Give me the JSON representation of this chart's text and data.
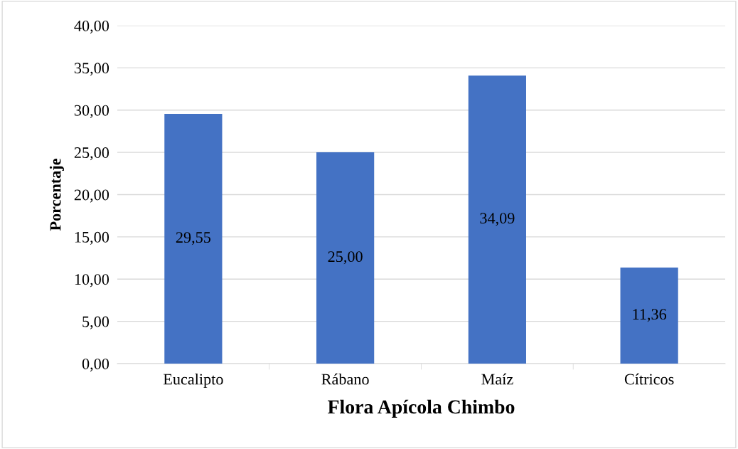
{
  "chart_data": {
    "type": "bar",
    "xlabel": "Flora Apícola Chimbo",
    "ylabel": "Porcentaje",
    "categories": [
      "Eucalipto",
      "Rábano",
      "Maíz",
      "Cítricos"
    ],
    "values": [
      29.55,
      25.0,
      34.09,
      11.36
    ],
    "value_labels": [
      "29,55",
      "25,00",
      "34,09",
      "11,36"
    ],
    "color": "#4472c4",
    "ylim": [
      0,
      40
    ],
    "yticks": [
      {
        "value": 0,
        "label": "0,00"
      },
      {
        "value": 5,
        "label": "5,00"
      },
      {
        "value": 10,
        "label": "10,00"
      },
      {
        "value": 15,
        "label": "15,00"
      },
      {
        "value": 20,
        "label": "20,00"
      },
      {
        "value": 25,
        "label": "25,00"
      },
      {
        "value": 30,
        "label": "30,00"
      },
      {
        "value": 35,
        "label": "35,00"
      },
      {
        "value": 40,
        "label": "40,00"
      }
    ],
    "grid": "y",
    "legend": false
  }
}
